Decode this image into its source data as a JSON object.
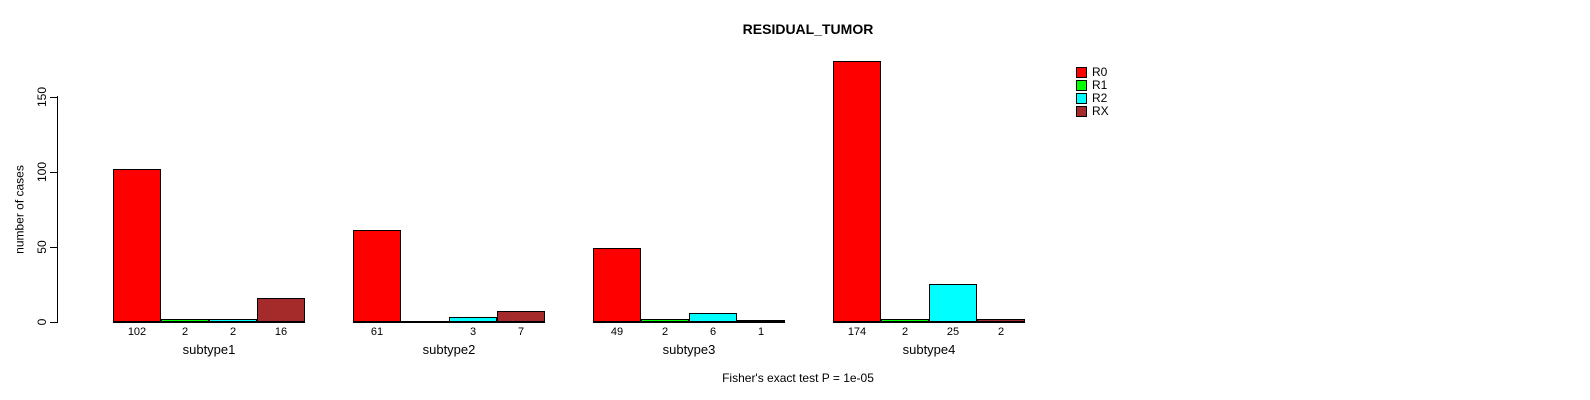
{
  "title": "RESIDUAL_TUMOR",
  "ylabel": "number of cases",
  "footer": "Fisher's exact test P = 1e-05",
  "chart_data": {
    "type": "bar",
    "title": "RESIDUAL_TUMOR",
    "xlabel": "",
    "ylabel": "number of cases",
    "categories": [
      "subtype1",
      "subtype2",
      "subtype3",
      "subtype4"
    ],
    "series": [
      {
        "name": "R0",
        "color": "#FF0000",
        "values": [
          102,
          61,
          49,
          174
        ]
      },
      {
        "name": "R1",
        "color": "#00FF00",
        "values": [
          2,
          0,
          2,
          2
        ]
      },
      {
        "name": "R2",
        "color": "#00FFFF",
        "values": [
          2,
          3,
          6,
          25
        ]
      },
      {
        "name": "RX",
        "color": "#A52A2A",
        "values": [
          16,
          7,
          1,
          2
        ]
      }
    ],
    "bar_labels": [
      [
        "102",
        "2",
        "2",
        "16"
      ],
      [
        "61",
        "",
        "3",
        "7"
      ],
      [
        "49",
        "2",
        "6",
        "1"
      ],
      [
        "174",
        "2",
        "25",
        "2"
      ]
    ],
    "yticks": [
      0,
      50,
      100,
      150
    ],
    "ylim": [
      0,
      180
    ],
    "grid": false,
    "legend_position": "right",
    "annotation": "Fisher's exact test P = 1e-05"
  }
}
